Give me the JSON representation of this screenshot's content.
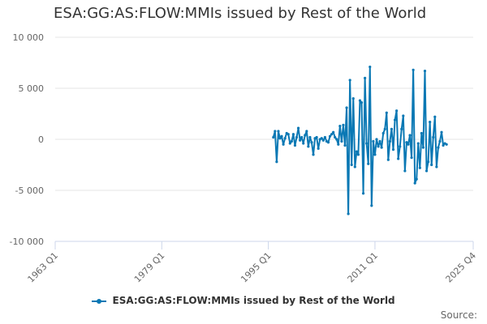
{
  "chart_data": {
    "type": "line",
    "title": "ESA:GG:AS:FLOW:MMIs issued by Rest of the World",
    "x_unit": "quarter",
    "xlim": [
      "1963 Q1",
      "2025 Q4"
    ],
    "ylim": [
      -10000,
      10000
    ],
    "y_ticks": [
      10000,
      5000,
      0,
      -5000,
      -10000
    ],
    "y_tick_labels": [
      "10 000",
      "5 000",
      "0",
      "-5 000",
      "-10 000"
    ],
    "x_tick_labels": [
      "1963 Q1",
      "1979 Q1",
      "1995 Q1",
      "2011 Q1",
      "2025 Q4"
    ],
    "grid": true,
    "legend": "bottom",
    "series": [
      {
        "name": "ESA:GG:AS:FLOW:MMIs issued by Rest of the World",
        "color": "#0a78b4",
        "start": "1995 Q4",
        "values": [
          200,
          800,
          -2200,
          800,
          100,
          300,
          -500,
          100,
          600,
          500,
          -400,
          -200,
          500,
          -600,
          200,
          1100,
          -100,
          200,
          -400,
          400,
          800,
          -700,
          200,
          -300,
          -1500,
          100,
          200,
          -900,
          0,
          100,
          -100,
          200,
          -200,
          -300,
          300,
          500,
          700,
          200,
          0,
          -500,
          1300,
          -200,
          1400,
          -600,
          3100,
          -7300,
          5800,
          -2500,
          4000,
          -2700,
          -1200,
          -1500,
          3800,
          3600,
          -5300,
          6000,
          -400,
          -2400,
          7100,
          -6500,
          -200,
          -1500,
          0,
          -700,
          -200,
          -800,
          600,
          1000,
          2600,
          -2000,
          -200,
          1000,
          -1000,
          1900,
          2800,
          -1900,
          -700,
          1000,
          2300,
          -3100,
          -300,
          -500,
          400,
          -1800,
          6800,
          -4300,
          -3900,
          -400,
          -2800,
          600,
          -800,
          6700,
          -3100,
          -2200,
          1700,
          -2500,
          200,
          2200,
          -2700,
          -800,
          -200,
          700,
          -600,
          -400,
          -500
        ]
      }
    ]
  },
  "credits": "Source:"
}
